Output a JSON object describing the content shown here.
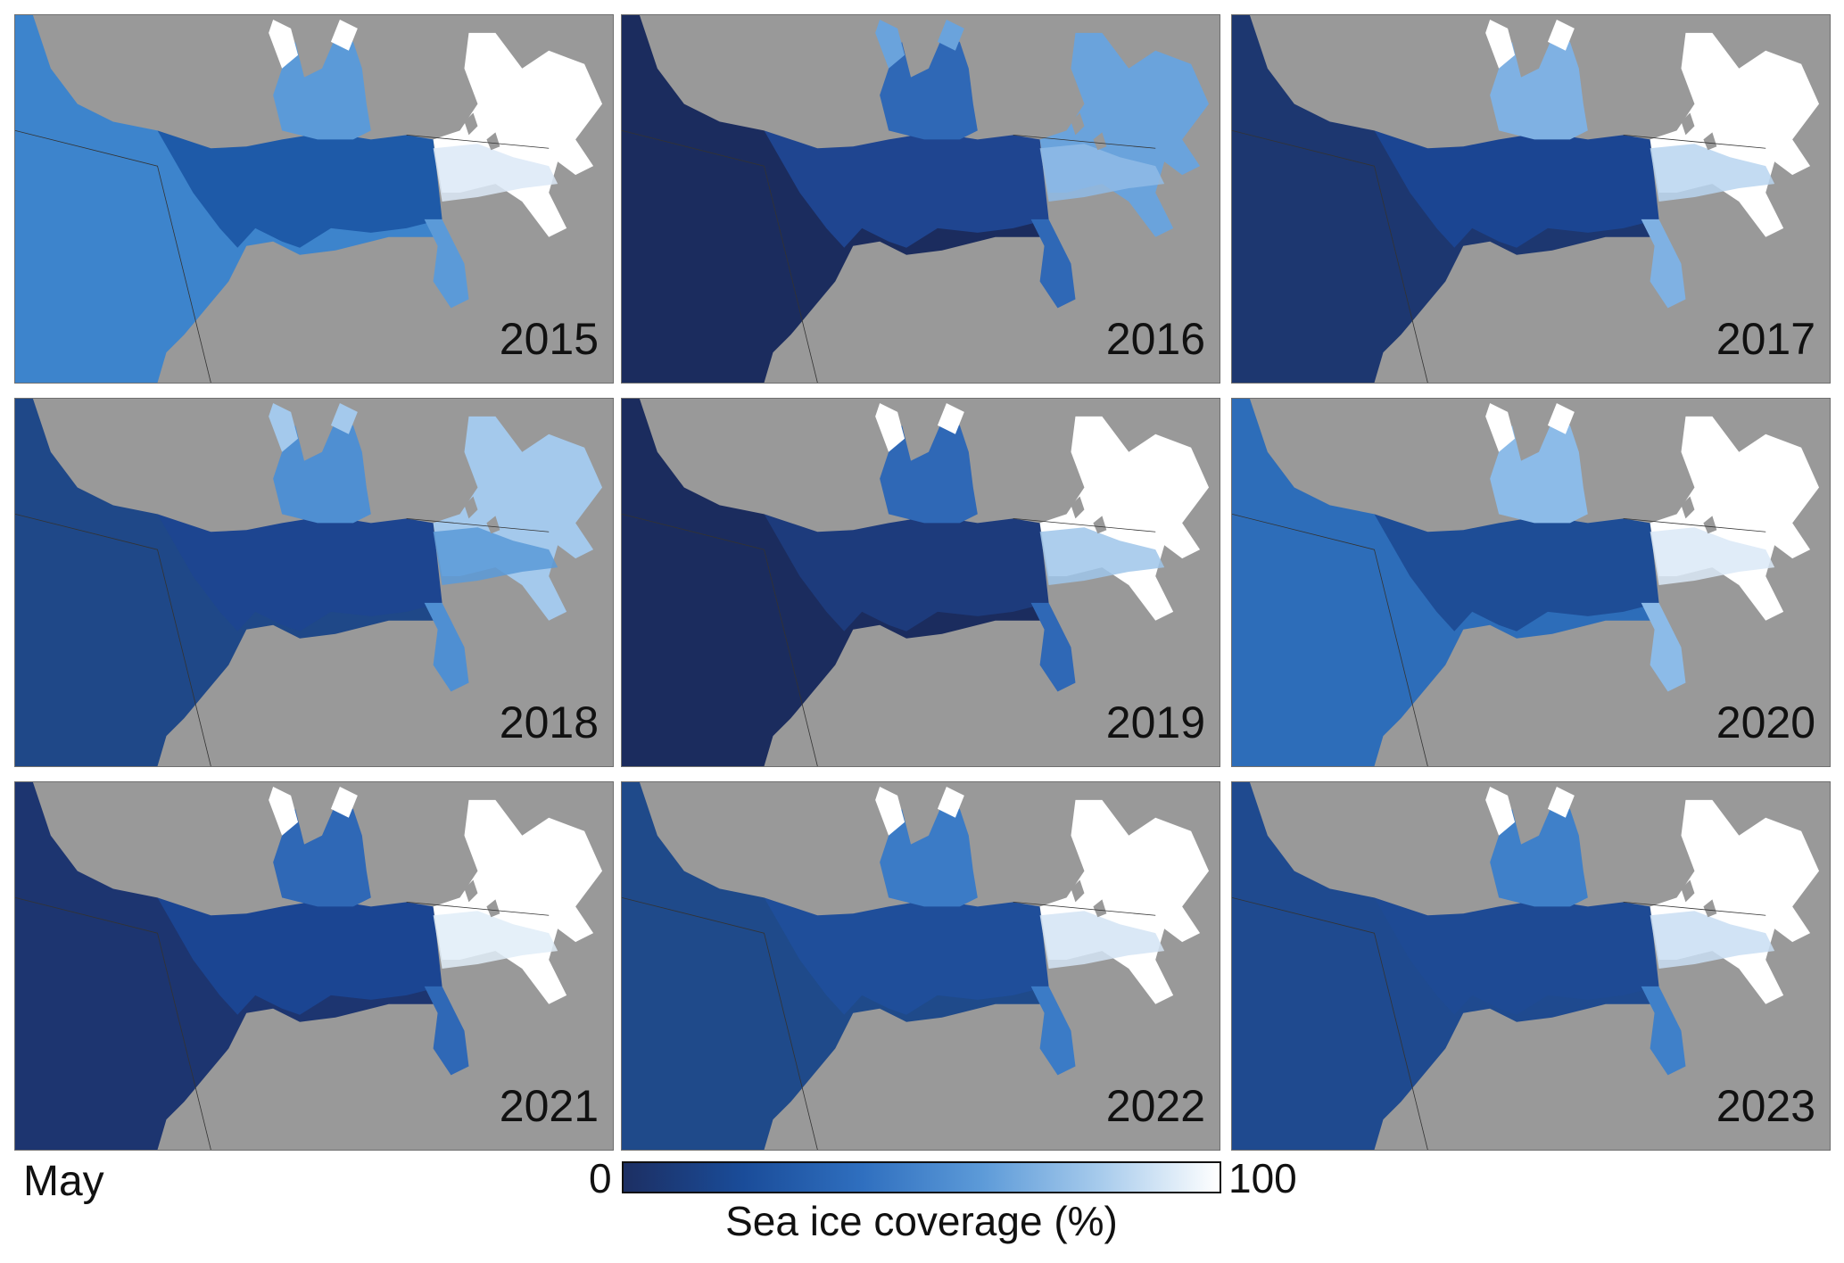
{
  "panels": [
    {
      "year": "2015",
      "shade": "#3d84cc",
      "bay": "#1e5aa8",
      "arm": "#5b9ad8",
      "inlet": "#ffffff",
      "strait": "#dce9f7"
    },
    {
      "year": "2016",
      "shade": "#1b2c5e",
      "bay": "#1f4590",
      "arm": "#2f68b6",
      "inlet": "#6aa3dc",
      "strait": "#8fbbe6"
    },
    {
      "year": "2017",
      "shade": "#1d3770",
      "bay": "#1b4592",
      "arm": "#7fb1e3",
      "inlet": "#ffffff",
      "strait": "#b9d5f0"
    },
    {
      "year": "2018",
      "shade": "#1f4888",
      "bay": "#1d4590",
      "arm": "#4f8fd2",
      "inlet": "#a4c9ec",
      "strait": "#5b9ad8"
    },
    {
      "year": "2019",
      "shade": "#1b2c5e",
      "bay": "#1d3b7c",
      "arm": "#2f68b6",
      "inlet": "#ffffff",
      "strait": "#9fc5ea"
    },
    {
      "year": "2020",
      "shade": "#2d6db9",
      "bay": "#1e4d96",
      "arm": "#8cbbe8",
      "inlet": "#ffffff",
      "strait": "#dbe9f7"
    },
    {
      "year": "2021",
      "shade": "#1d3570",
      "bay": "#1b4592",
      "arm": "#2f68b6",
      "inlet": "#ffffff",
      "strait": "#e1edf8"
    },
    {
      "year": "2022",
      "shade": "#1f4a8a",
      "bay": "#1f4e9a",
      "arm": "#3b7bc6",
      "inlet": "#ffffff",
      "strait": "#d3e4f5"
    },
    {
      "year": "2023",
      "shade": "#1f4a8f",
      "bay": "#1e4a94",
      "arm": "#3f80c9",
      "inlet": "#ffffff",
      "strait": "#c9def3"
    }
  ],
  "land_color": "#999999",
  "month": "May",
  "colorbar": {
    "min": "0",
    "max": "100",
    "label": "Sea ice coverage (%)",
    "colors": [
      "#1c2f63",
      "#1a4c99",
      "#2f6fbf",
      "#5c9ad8",
      "#a7cbec",
      "#ffffff"
    ]
  }
}
